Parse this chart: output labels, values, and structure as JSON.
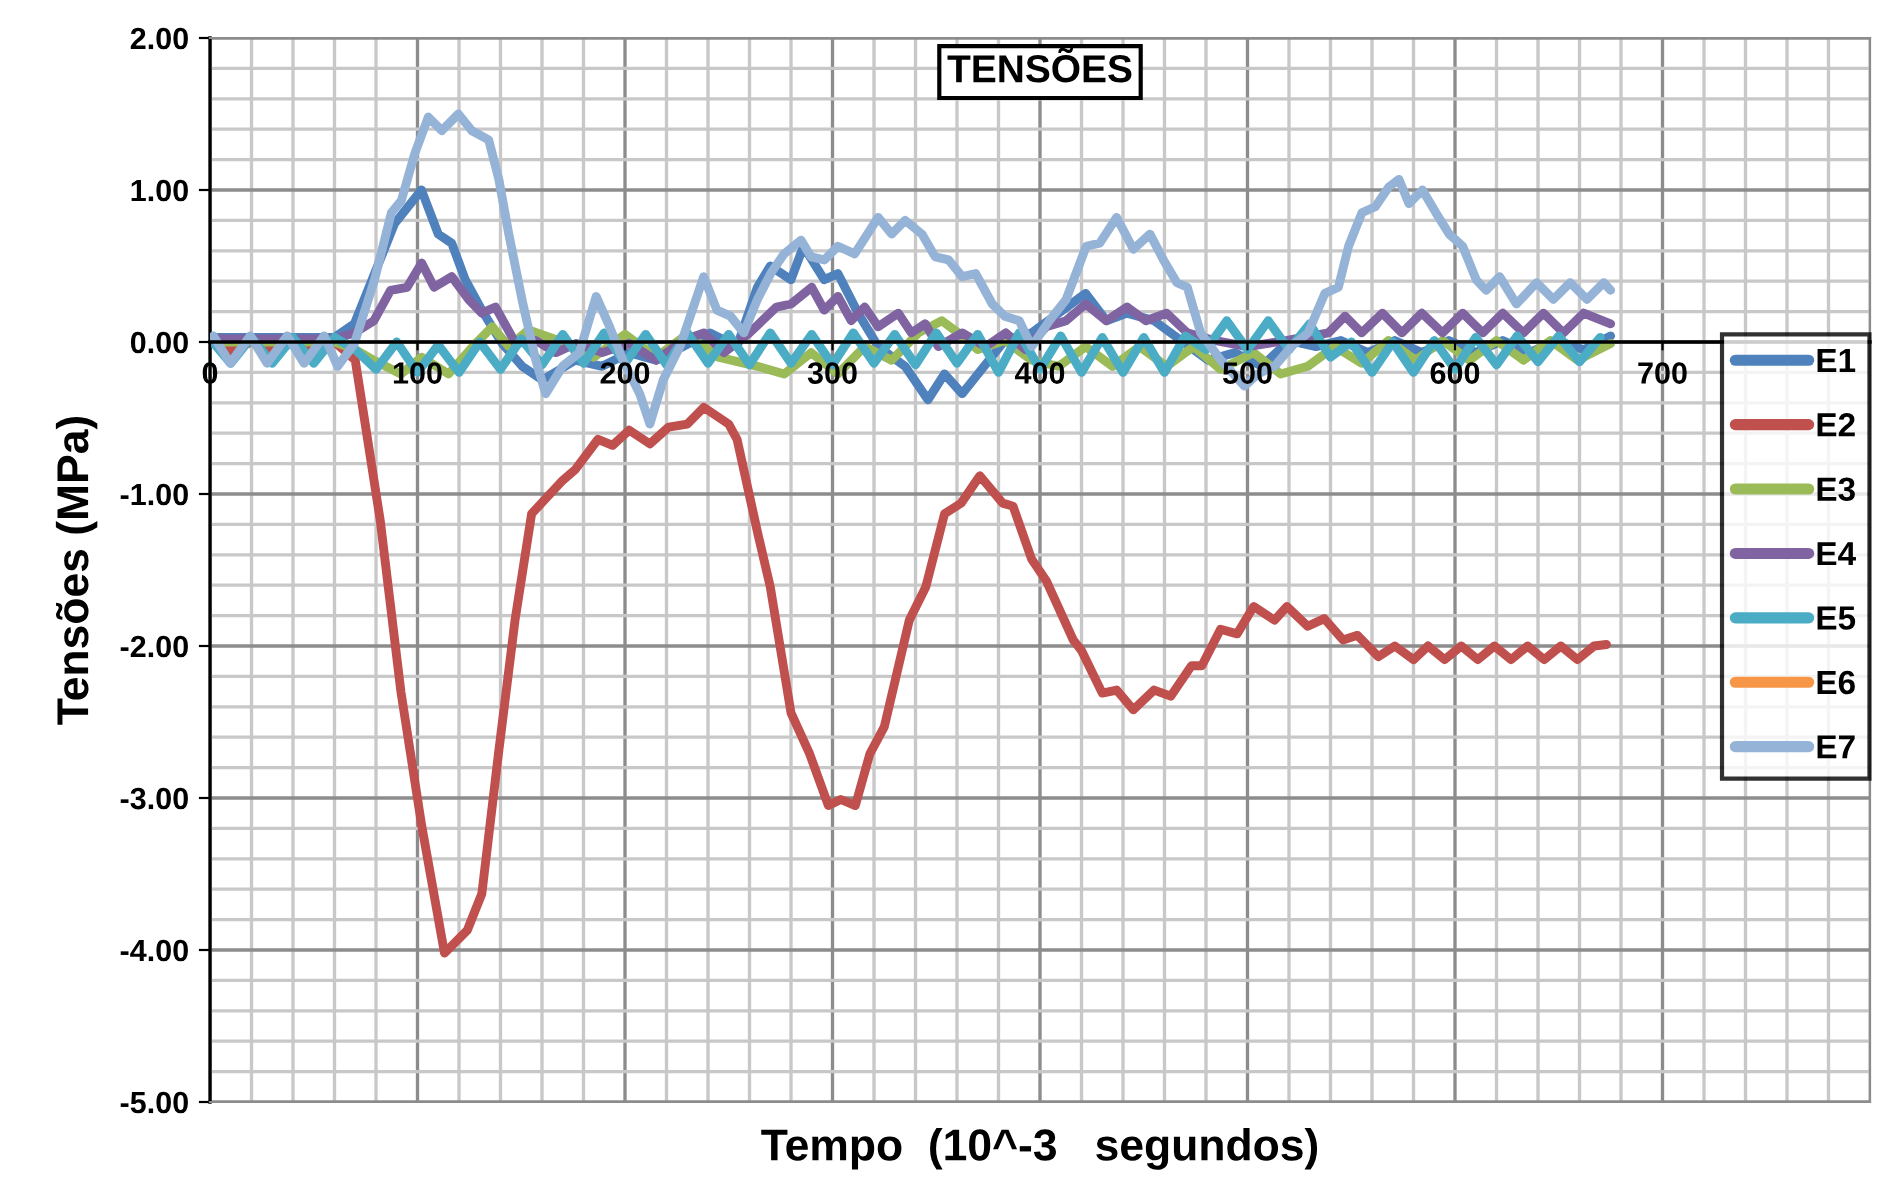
{
  "chart_data": {
    "type": "line",
    "title": "TENSÕES",
    "xlabel": "Tempo  (10^-3   segundos)",
    "ylabel": "Tensões (MPa)",
    "xlim": [
      0,
      800
    ],
    "xticks": [
      0,
      100,
      200,
      300,
      400,
      500,
      600,
      700
    ],
    "ylim": [
      -5,
      2
    ],
    "yticks": [
      {
        "value": -5,
        "label": "-5.00"
      },
      {
        "value": -4,
        "label": "-4.00"
      },
      {
        "value": -3,
        "label": "-3.00"
      },
      {
        "value": -2,
        "label": "-2.00"
      },
      {
        "value": -1,
        "label": "-1.00"
      },
      {
        "value": 0,
        "label": "0.00"
      },
      {
        "value": 1,
        "label": "1.00"
      },
      {
        "value": 2,
        "label": "2.00"
      }
    ],
    "grid": true,
    "legend": "right",
    "marker": "none",
    "line_style": "solid",
    "series": [
      {
        "name": "E1",
        "color": "#4f81bd",
        "x": [
          0,
          20,
          40,
          60,
          69.6,
          89,
          101.9,
          110,
          116.5,
          123,
          131,
          140.8,
          150.5,
          160.2,
          176,
          189,
          202,
          215,
          228,
          241,
          254,
          263.8,
          270,
          280,
          286,
          296,
          302.6,
          312.3,
          322,
          335,
          346,
          354,
          362.5,
          383,
          396,
          409,
          422,
          432,
          442,
          455,
          468,
          481,
          494,
          507,
          520,
          533,
          545,
          558,
          571,
          584,
          597,
          610,
          623,
          636,
          649,
          662,
          675
        ],
        "values": [
          0.03,
          0.03,
          0.03,
          0.03,
          0.12,
          0.78,
          1.0,
          0.71,
          0.65,
          0.41,
          0.21,
          -0.01,
          -0.16,
          -0.25,
          -0.12,
          -0.16,
          -0.07,
          -0.12,
          -0.03,
          0.06,
          -0.03,
          0.36,
          0.5,
          0.41,
          0.63,
          0.41,
          0.45,
          0.19,
          -0.03,
          -0.16,
          -0.38,
          -0.21,
          -0.34,
          0.01,
          0.06,
          0.19,
          0.32,
          0.14,
          0.19,
          0.14,
          0.01,
          -0.12,
          -0.07,
          -0.16,
          0.01,
          -0.03,
          0.01,
          -0.07,
          0.01,
          -0.07,
          0.01,
          -0.07,
          0.01,
          -0.07,
          0.01,
          -0.05,
          0.04
        ]
      },
      {
        "name": "E2",
        "color": "#c0504d",
        "x": [
          0,
          10,
          20,
          30,
          40,
          50,
          60,
          70,
          82,
          92,
          102,
          113,
          124,
          131,
          139,
          147,
          155,
          170,
          176,
          187,
          194,
          202,
          212,
          221,
          230,
          238,
          250,
          254,
          264,
          270,
          280,
          289,
          298,
          304,
          311,
          318,
          325,
          337,
          345,
          354,
          362,
          371,
          382,
          387,
          396,
          403,
          416,
          420,
          430,
          437,
          445,
          455,
          463,
          473,
          478,
          487,
          495,
          503,
          513,
          519,
          529,
          537,
          546,
          553,
          563,
          571,
          580,
          587,
          595,
          603,
          611,
          619,
          627,
          635,
          643,
          651,
          659,
          667,
          673
        ],
        "values": [
          0.0,
          -0.06,
          0.0,
          -0.06,
          0.0,
          -0.06,
          0.0,
          -0.12,
          -1.17,
          -2.3,
          -3.18,
          -4.02,
          -3.87,
          -3.63,
          -2.71,
          -1.83,
          -1.13,
          -0.91,
          -0.84,
          -0.64,
          -0.68,
          -0.58,
          -0.67,
          -0.56,
          -0.54,
          -0.43,
          -0.54,
          -0.64,
          -1.26,
          -1.61,
          -2.44,
          -2.71,
          -3.05,
          -3.01,
          -3.05,
          -2.71,
          -2.53,
          -1.83,
          -1.61,
          -1.13,
          -1.06,
          -0.88,
          -1.06,
          -1.08,
          -1.43,
          -1.57,
          -1.96,
          -2.03,
          -2.31,
          -2.29,
          -2.42,
          -2.29,
          -2.33,
          -2.13,
          -2.13,
          -1.89,
          -1.92,
          -1.74,
          -1.83,
          -1.74,
          -1.87,
          -1.82,
          -1.96,
          -1.93,
          -2.07,
          -2.0,
          -2.09,
          -2.0,
          -2.09,
          -2.0,
          -2.09,
          -2.0,
          -2.09,
          -2.0,
          -2.09,
          -2.0,
          -2.09,
          -2.0,
          -1.99
        ]
      },
      {
        "name": "E3",
        "color": "#9bbb59",
        "x": [
          0,
          20,
          40,
          60,
          70,
          79,
          92,
          102,
          115,
          128,
          136,
          144,
          153.5,
          170,
          185,
          200,
          215,
          230,
          245,
          263.8,
          276.7,
          289.7,
          302.6,
          315.5,
          328.5,
          341.4,
          352.7,
          362.5,
          370,
          383,
          396,
          409,
          422,
          435,
          448,
          461,
          474,
          487,
          503,
          516,
          529,
          542,
          555,
          568,
          581,
          594,
          607,
          620,
          633,
          646,
          659,
          675
        ],
        "values": [
          0.0,
          0.0,
          0.0,
          0.0,
          -0.05,
          -0.12,
          -0.21,
          -0.1,
          -0.21,
          -0.01,
          0.1,
          -0.03,
          0.08,
          0.0,
          -0.1,
          0.05,
          -0.1,
          0.05,
          -0.1,
          -0.16,
          -0.21,
          -0.07,
          -0.21,
          -0.03,
          -0.12,
          0.06,
          0.14,
          0.04,
          -0.05,
          0.01,
          -0.12,
          -0.16,
          -0.03,
          -0.16,
          -0.03,
          -0.16,
          -0.03,
          -0.18,
          -0.07,
          -0.21,
          -0.16,
          -0.03,
          -0.14,
          0.01,
          -0.12,
          0.01,
          -0.12,
          0.01,
          -0.12,
          0.01,
          -0.12,
          -0.01
        ]
      },
      {
        "name": "E4",
        "color": "#8064a2",
        "x": [
          0,
          20,
          40,
          60,
          69.6,
          79,
          87,
          95,
          102,
          108,
          116.5,
          124.6,
          131,
          137.6,
          147.3,
          157,
          166.7,
          176.4,
          189,
          202,
          215,
          228,
          238,
          247.6,
          260,
          273,
          280,
          290,
          296,
          302.6,
          309,
          315.5,
          322,
          331.7,
          338,
          344.7,
          351,
          362.5,
          373.8,
          383.5,
          393,
          403,
          412.6,
          422,
          432,
          442,
          451,
          461,
          471,
          484,
          500,
          519,
          539,
          547,
          555,
          565,
          574.4,
          584,
          594,
          603.7,
          613.4,
          623,
          633,
          642.6,
          652.3,
          662,
          675
        ],
        "values": [
          0.02,
          0.02,
          0.02,
          0.02,
          0.06,
          0.14,
          0.34,
          0.36,
          0.52,
          0.36,
          0.43,
          0.28,
          0.19,
          0.23,
          -0.01,
          0.01,
          -0.07,
          -0.01,
          -0.07,
          -0.01,
          -0.12,
          0.01,
          0.06,
          -0.07,
          0.06,
          0.23,
          0.25,
          0.36,
          0.21,
          0.3,
          0.14,
          0.23,
          0.1,
          0.19,
          0.06,
          0.12,
          -0.03,
          0.06,
          -0.03,
          0.06,
          -0.05,
          0.1,
          0.14,
          0.25,
          0.14,
          0.23,
          0.14,
          0.19,
          0.06,
          0.01,
          -0.03,
          0.01,
          0.06,
          0.17,
          0.06,
          0.19,
          0.06,
          0.19,
          0.06,
          0.19,
          0.06,
          0.19,
          0.06,
          0.19,
          0.06,
          0.19,
          0.12
        ]
      },
      {
        "name": "E5",
        "color": "#4bacc6",
        "x": [
          0,
          10,
          20,
          30,
          40,
          50,
          60,
          70,
          80,
          90,
          100,
          110,
          120,
          130,
          140,
          150,
          160,
          170,
          180,
          190,
          200,
          210,
          220,
          230,
          240,
          250,
          260,
          270,
          280,
          290,
          300,
          310,
          320,
          330,
          340,
          350,
          360,
          370,
          380,
          390,
          400,
          410,
          420,
          430,
          440,
          450,
          460,
          470,
          480,
          490,
          500,
          510,
          520,
          530,
          540,
          550,
          560,
          570,
          580,
          590,
          600,
          610,
          620,
          630,
          640,
          650,
          660,
          670
        ],
        "values": [
          0.02,
          -0.14,
          0.03,
          -0.14,
          0.03,
          -0.14,
          0.03,
          -0.05,
          -0.18,
          0.0,
          -0.2,
          -0.02,
          -0.2,
          0.0,
          -0.18,
          0.02,
          -0.15,
          0.05,
          -0.14,
          0.06,
          -0.14,
          0.05,
          -0.15,
          0.06,
          -0.14,
          0.05,
          -0.15,
          0.06,
          -0.14,
          0.05,
          -0.15,
          0.06,
          -0.14,
          0.05,
          -0.15,
          0.06,
          -0.14,
          0.05,
          -0.2,
          0.06,
          -0.18,
          0.04,
          -0.2,
          0.03,
          -0.2,
          0.03,
          -0.2,
          0.04,
          -0.05,
          0.14,
          -0.05,
          0.14,
          -0.05,
          0.12,
          -0.1,
          0.0,
          -0.2,
          0.0,
          -0.2,
          0.01,
          -0.18,
          0.03,
          -0.15,
          0.04,
          -0.13,
          0.04,
          -0.13,
          0.03
        ]
      },
      {
        "name": "E6",
        "color": "#f79646"
      },
      {
        "name": "E7",
        "color": "#95b3d7",
        "x": [
          1.6,
          9.7,
          19.4,
          27.5,
          37.2,
          45.3,
          55.0,
          61.5,
          69.6,
          79.3,
          87.4,
          92.2,
          98.7,
          105.2,
          111.7,
          119.7,
          126.2,
          134.3,
          139.2,
          144.0,
          150.5,
          157.0,
          161.8,
          169.9,
          178.0,
          186.1,
          192.6,
          199.0,
          207.1,
          212.0,
          218.4,
          226.5,
          237.9,
          244.3,
          250.8,
          257.3,
          263.8,
          270.2,
          276.7,
          284.8,
          289.7,
          296.1,
          302.6,
          310.7,
          322.0,
          328.5,
          335.0,
          343.1,
          349.5,
          356.0,
          362.5,
          369,
          377,
          383,
          390,
          396,
          404.5,
          412.6,
          422.3,
          428.8,
          436.9,
          445,
          453,
          459.5,
          466,
          471,
          477.4,
          487.2,
          498.5,
          505,
          513,
          521.1,
          529.2,
          537.3,
          543.8,
          548.7,
          555.1,
          561.6,
          568.1,
          573,
          577.8,
          584.3,
          590.8,
          597.2,
          603.7,
          610.2,
          615,
          621.5,
          629.6,
          639.3,
          647.4,
          655.5,
          663.6,
          671.7,
          675
        ],
        "values": [
          0.04,
          -0.14,
          0.04,
          -0.14,
          0.04,
          -0.14,
          0.04,
          -0.16,
          -0.01,
          0.41,
          0.85,
          0.93,
          1.24,
          1.48,
          1.39,
          1.5,
          1.39,
          1.33,
          1.07,
          0.71,
          0.27,
          -0.12,
          -0.34,
          -0.16,
          -0.07,
          0.3,
          0.1,
          -0.12,
          -0.34,
          -0.54,
          -0.25,
          -0.03,
          0.43,
          0.21,
          0.17,
          0.06,
          0.28,
          0.45,
          0.58,
          0.67,
          0.56,
          0.54,
          0.63,
          0.58,
          0.82,
          0.71,
          0.8,
          0.71,
          0.56,
          0.54,
          0.43,
          0.45,
          0.25,
          0.17,
          0.14,
          -0.03,
          0.14,
          0.28,
          0.63,
          0.65,
          0.82,
          0.61,
          0.71,
          0.54,
          0.39,
          0.36,
          0.06,
          -0.12,
          -0.29,
          -0.21,
          -0.16,
          -0.03,
          0.06,
          0.32,
          0.36,
          0.63,
          0.85,
          0.89,
          1.02,
          1.07,
          0.91,
          1.0,
          0.85,
          0.71,
          0.63,
          0.41,
          0.34,
          0.43,
          0.25,
          0.39,
          0.28,
          0.39,
          0.28,
          0.39,
          0.34
        ]
      }
    ]
  }
}
